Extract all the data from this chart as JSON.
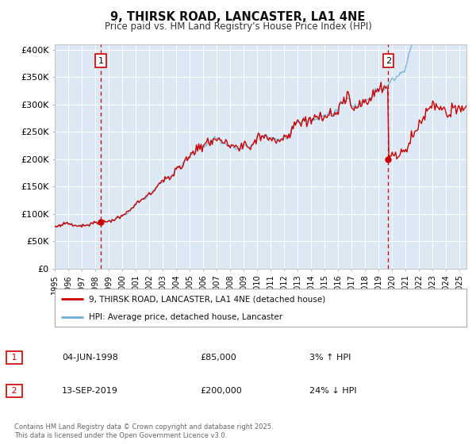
{
  "title": "9, THIRSK ROAD, LANCASTER, LA1 4NE",
  "subtitle": "Price paid vs. HM Land Registry's House Price Index (HPI)",
  "background_color": "#ffffff",
  "plot_bg_color": "#dce9f5",
  "grid_color": "#ffffff",
  "ylim": [
    0,
    410000
  ],
  "yticks": [
    0,
    50000,
    100000,
    150000,
    200000,
    250000,
    300000,
    350000,
    400000
  ],
  "ytick_labels": [
    "£0",
    "£50K",
    "£100K",
    "£150K",
    "£200K",
    "£250K",
    "£300K",
    "£350K",
    "£400K"
  ],
  "xlim_start": 1995.0,
  "xlim_end": 2025.5,
  "sale1_date": 1998.42,
  "sale1_price": 85000,
  "sale1_label": "1",
  "sale2_date": 2019.71,
  "sale2_price": 200000,
  "sale2_label": "2",
  "legend_line1": "9, THIRSK ROAD, LANCASTER, LA1 4NE (detached house)",
  "legend_line2": "HPI: Average price, detached house, Lancaster",
  "annotation1_date": "04-JUN-1998",
  "annotation1_price": "£85,000",
  "annotation1_hpi": "3% ↑ HPI",
  "annotation2_date": "13-SEP-2019",
  "annotation2_price": "£200,000",
  "annotation2_hpi": "24% ↓ HPI",
  "footnote": "Contains HM Land Registry data © Crown copyright and database right 2025.\nThis data is licensed under the Open Government Licence v3.0.",
  "hpi_color": "#6baed6",
  "price_color": "#cc0000",
  "sale_dot_color": "#cc0000",
  "vline_color": "#cc0000",
  "label_box_color": "#cc0000"
}
